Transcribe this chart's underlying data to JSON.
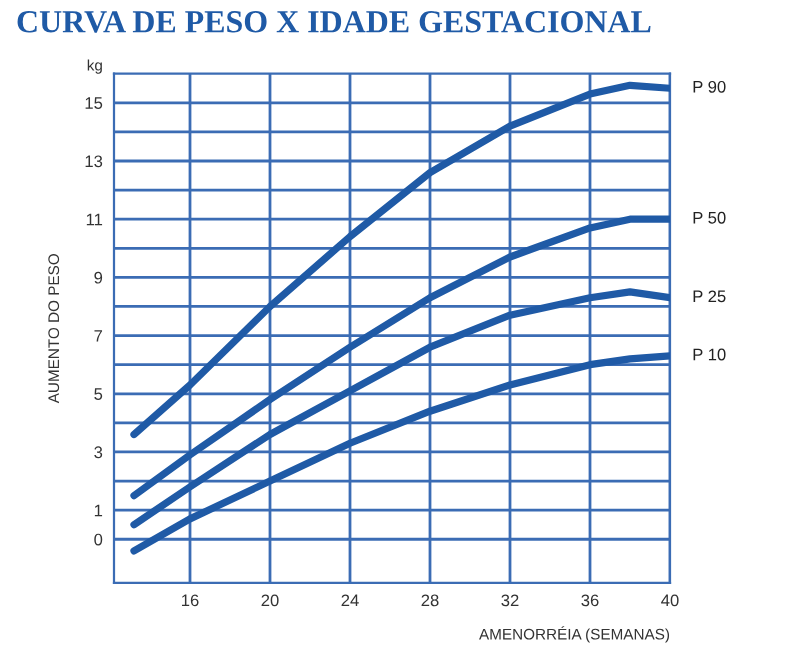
{
  "chart_data": {
    "type": "line",
    "title": "CURVA DE PESO X IDADE GESTACIONAL",
    "xlabel": "AMENORRÉIA (SEMANAS)",
    "ylabel": "AUMENTO DO PESO",
    "annotations": [
      "kg"
    ],
    "x": [
      13.2,
      16,
      20,
      24,
      28,
      32,
      36,
      38,
      40
    ],
    "series": [
      {
        "name": "P 90",
        "color": "#1f5aa6",
        "values": [
          3.6,
          5.3,
          8.0,
          10.4,
          12.6,
          14.2,
          15.3,
          15.6,
          15.5
        ]
      },
      {
        "name": "P 50",
        "color": "#1f5aa6",
        "values": [
          1.5,
          2.9,
          4.8,
          6.6,
          8.3,
          9.7,
          10.7,
          11.0,
          11.0
        ]
      },
      {
        "name": "P 25",
        "color": "#1f5aa6",
        "values": [
          0.5,
          1.8,
          3.6,
          5.1,
          6.6,
          7.7,
          8.3,
          8.5,
          8.3
        ]
      },
      {
        "name": "P 10",
        "color": "#1f5aa6",
        "values": [
          -0.4,
          0.7,
          2.0,
          3.3,
          4.4,
          5.3,
          6.0,
          6.2,
          6.3
        ]
      }
    ],
    "xlim": [
      12.2,
      40
    ],
    "xticks": [
      16,
      20,
      24,
      28,
      32,
      36,
      40
    ],
    "ylim": [
      -1.5,
      16
    ],
    "yticks": [
      0,
      1,
      {
        "value": 2,
        "label": null
      },
      3,
      {
        "value": 4,
        "label": null
      },
      5,
      {
        "value": 6,
        "label": null
      },
      7,
      {
        "value": 8,
        "label": null
      },
      9,
      {
        "value": 10,
        "label": null
      },
      11,
      {
        "value": 12,
        "label": null
      },
      13,
      {
        "value": 14,
        "label": null
      },
      15
    ],
    "grid": true,
    "line_style": "solid",
    "marker": "none"
  }
}
